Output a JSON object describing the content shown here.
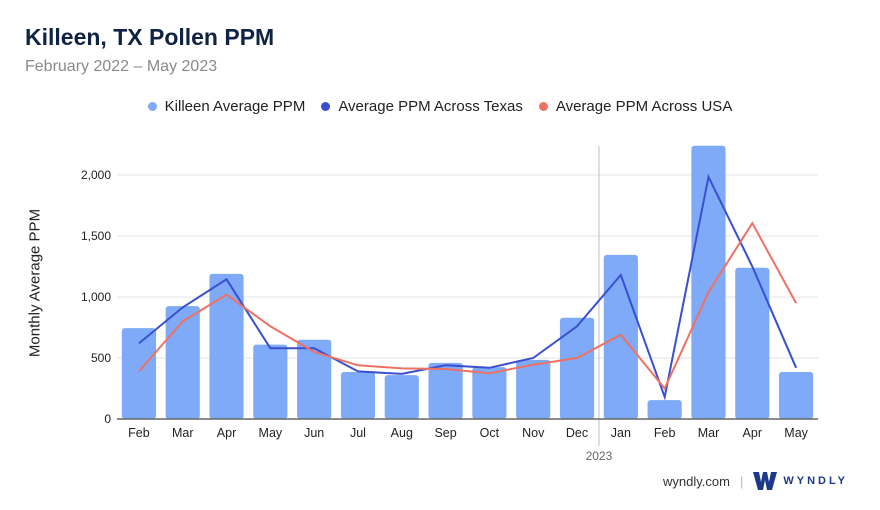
{
  "header": {
    "title": "Killeen, TX Pollen PPM",
    "subtitle": "February 2022 – May 2023"
  },
  "legend": [
    {
      "label": "Killeen Average PPM",
      "color": "#7eaaf8"
    },
    {
      "label": "Average PPM Across Texas",
      "color": "#3a4fd0"
    },
    {
      "label": "Average PPM Across USA",
      "color": "#ef7163"
    }
  ],
  "footer": {
    "site": "wyndly.com",
    "brand": "WYNDLY"
  },
  "chart_data": {
    "type": "bar",
    "title": "Killeen, TX Pollen PPM",
    "subtitle": "February 2022 – May 2023",
    "xlabel": "",
    "ylabel": "Monthly Average PPM",
    "ylim": [
      0,
      2250
    ],
    "yticks": [
      "0",
      "500",
      "1,000",
      "1,500",
      "2,000"
    ],
    "categories": [
      "Feb",
      "Mar",
      "Apr",
      "May",
      "Jun",
      "Jul",
      "Aug",
      "Sep",
      "Oct",
      "Nov",
      "Dec",
      "Jan",
      "Feb",
      "Mar",
      "Apr",
      "May"
    ],
    "year_marker": {
      "label": "2023",
      "before_index": 11
    },
    "grid": true,
    "legend_position": "top",
    "series": [
      {
        "name": "Killeen Average PPM",
        "type": "bar",
        "color": "#7eaaf8",
        "values": [
          745,
          925,
          1190,
          610,
          650,
          385,
          360,
          460,
          425,
          485,
          830,
          1345,
          155,
          2240,
          1240,
          385
        ]
      },
      {
        "name": "Average PPM Across Texas",
        "type": "line",
        "color": "#3a4fd0",
        "values": [
          620,
          915,
          1145,
          580,
          580,
          390,
          370,
          440,
          420,
          500,
          760,
          1180,
          180,
          1985,
          1250,
          420
        ]
      },
      {
        "name": "Average PPM Across USA",
        "type": "line",
        "color": "#ef7163",
        "values": [
          390,
          800,
          1020,
          760,
          550,
          440,
          415,
          410,
          375,
          445,
          500,
          690,
          250,
          1040,
          1605,
          950
        ]
      }
    ]
  }
}
